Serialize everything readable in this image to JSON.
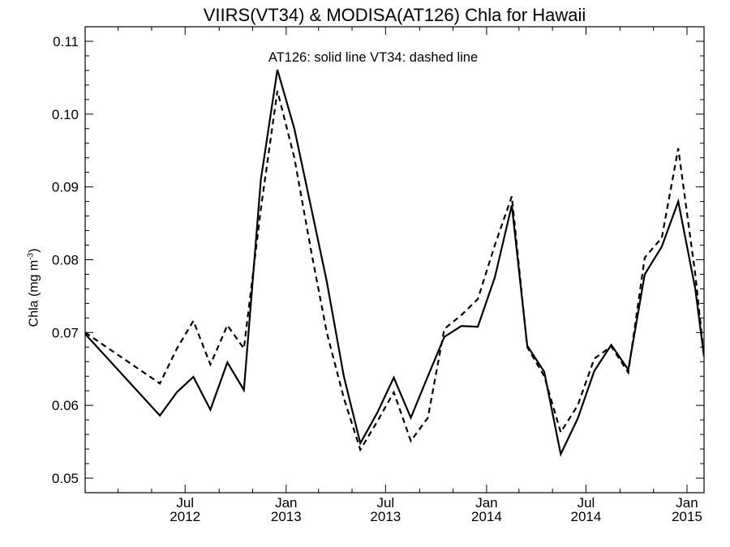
{
  "chart_data": {
    "type": "line",
    "title": "VIIRS(VT34) & MODISA(AT126)  Chla for Hawaii",
    "annotation": "AT126: solid line   VT34: dashed line",
    "ylabel_main": "Chla (mg m",
    "ylabel_exp": "-3",
    "ylabel_end": ")",
    "xlim": [
      "2012-01-01",
      "2015-02-01"
    ],
    "ylim": [
      0.048,
      0.112
    ],
    "yticks": [
      {
        "value": 0.05,
        "label": "0.05"
      },
      {
        "value": 0.06,
        "label": "0.06"
      },
      {
        "value": 0.07,
        "label": "0.07"
      },
      {
        "value": 0.08,
        "label": "0.08"
      },
      {
        "value": 0.09,
        "label": "0.09"
      },
      {
        "value": 0.1,
        "label": "0.10"
      },
      {
        "value": 0.11,
        "label": "0.11"
      }
    ],
    "xticks": [
      {
        "date": "2012-07-01",
        "line1": "Jul",
        "line2": "2012"
      },
      {
        "date": "2013-01-01",
        "line1": "Jan",
        "line2": "2013"
      },
      {
        "date": "2013-07-01",
        "line1": "Jul",
        "line2": "2013"
      },
      {
        "date": "2014-01-01",
        "line1": "Jan",
        "line2": "2014"
      },
      {
        "date": "2014-07-01",
        "line1": "Jul",
        "line2": "2014"
      },
      {
        "date": "2015-01-01",
        "line1": "Jan",
        "line2": "2015"
      }
    ],
    "grid": false,
    "series": [
      {
        "name": "AT126",
        "style": "solid",
        "color": "#000000",
        "points": [
          [
            "2012-01-01",
            0.0698
          ],
          [
            "2012-05-16",
            0.0586
          ],
          [
            "2012-06-16",
            0.0618
          ],
          [
            "2012-07-16",
            0.0639
          ],
          [
            "2012-08-16",
            0.0594
          ],
          [
            "2012-09-16",
            0.0659
          ],
          [
            "2012-10-16",
            0.0621
          ],
          [
            "2012-11-16",
            0.091
          ],
          [
            "2012-12-16",
            0.1061
          ],
          [
            "2013-01-16",
            0.098
          ],
          [
            "2013-02-16",
            0.087
          ],
          [
            "2013-03-16",
            0.077
          ],
          [
            "2013-04-16",
            0.064
          ],
          [
            "2013-05-16",
            0.0548
          ],
          [
            "2013-06-16",
            0.059
          ],
          [
            "2013-07-16",
            0.0638
          ],
          [
            "2013-08-16",
            0.0583
          ],
          [
            "2013-09-16",
            0.064
          ],
          [
            "2013-10-16",
            0.0694
          ],
          [
            "2013-11-16",
            0.0709
          ],
          [
            "2013-12-16",
            0.0708
          ],
          [
            "2014-01-16",
            0.0776
          ],
          [
            "2014-02-16",
            0.0875
          ],
          [
            "2014-03-16",
            0.0682
          ],
          [
            "2014-04-16",
            0.0646
          ],
          [
            "2014-05-16",
            0.0533
          ],
          [
            "2014-06-16",
            0.0582
          ],
          [
            "2014-07-16",
            0.0647
          ],
          [
            "2014-08-16",
            0.0683
          ],
          [
            "2014-09-16",
            0.0649
          ],
          [
            "2014-10-16",
            0.078
          ],
          [
            "2014-11-16",
            0.0818
          ],
          [
            "2014-12-16",
            0.088
          ],
          [
            "2015-01-16",
            0.076
          ],
          [
            "2015-02-01",
            0.0667
          ]
        ]
      },
      {
        "name": "VT34",
        "style": "dashed",
        "color": "#000000",
        "points": [
          [
            "2012-01-01",
            0.07
          ],
          [
            "2012-05-16",
            0.063
          ],
          [
            "2012-06-16",
            0.0678
          ],
          [
            "2012-07-16",
            0.0716
          ],
          [
            "2012-08-16",
            0.0656
          ],
          [
            "2012-09-16",
            0.071
          ],
          [
            "2012-10-16",
            0.0678
          ],
          [
            "2012-11-16",
            0.087
          ],
          [
            "2012-12-16",
            0.1032
          ],
          [
            "2013-01-16",
            0.094
          ],
          [
            "2013-02-16",
            0.081
          ],
          [
            "2013-03-16",
            0.07
          ],
          [
            "2013-04-16",
            0.061
          ],
          [
            "2013-05-16",
            0.0539
          ],
          [
            "2013-06-16",
            0.0578
          ],
          [
            "2013-07-16",
            0.0618
          ],
          [
            "2013-08-16",
            0.0551
          ],
          [
            "2013-09-16",
            0.0583
          ],
          [
            "2013-10-16",
            0.0705
          ],
          [
            "2013-11-16",
            0.0724
          ],
          [
            "2013-12-16",
            0.0746
          ],
          [
            "2014-01-16",
            0.082
          ],
          [
            "2014-02-16",
            0.0887
          ],
          [
            "2014-03-16",
            0.068
          ],
          [
            "2014-04-16",
            0.064
          ],
          [
            "2014-05-16",
            0.0563
          ],
          [
            "2014-06-16",
            0.06
          ],
          [
            "2014-07-16",
            0.0664
          ],
          [
            "2014-08-16",
            0.0681
          ],
          [
            "2014-09-16",
            0.0645
          ],
          [
            "2014-10-16",
            0.0803
          ],
          [
            "2014-11-16",
            0.083
          ],
          [
            "2014-12-16",
            0.0953
          ],
          [
            "2015-01-16",
            0.078
          ],
          [
            "2015-02-01",
            0.0667
          ]
        ]
      }
    ]
  }
}
